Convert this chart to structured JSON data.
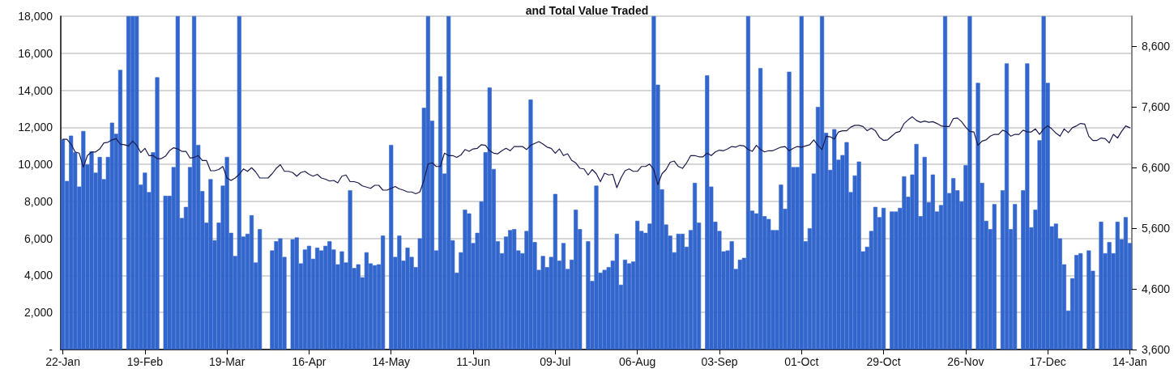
{
  "chart_data": {
    "type": "bar",
    "title": "and Total Value Traded",
    "categories": [
      "22-Jan",
      null,
      null,
      null,
      null,
      null,
      null,
      null,
      null,
      null,
      null,
      null,
      null,
      null,
      null,
      null,
      null,
      null,
      null,
      null,
      "19-Feb",
      null,
      null,
      null,
      null,
      null,
      null,
      null,
      null,
      null,
      null,
      null,
      null,
      null,
      null,
      null,
      null,
      null,
      null,
      null,
      "19-Mar",
      null,
      null,
      null,
      null,
      null,
      null,
      null,
      null,
      null,
      null,
      null,
      null,
      null,
      null,
      null,
      null,
      null,
      null,
      null,
      "16-Apr",
      null,
      null,
      null,
      null,
      null,
      null,
      null,
      null,
      null,
      null,
      null,
      null,
      null,
      null,
      null,
      null,
      null,
      null,
      null,
      "14-May",
      null,
      null,
      null,
      null,
      null,
      null,
      null,
      null,
      null,
      null,
      null,
      null,
      null,
      null,
      null,
      null,
      null,
      null,
      null,
      "11-Jun",
      null,
      null,
      null,
      null,
      null,
      null,
      null,
      null,
      null,
      null,
      null,
      null,
      null,
      null,
      null,
      null,
      null,
      null,
      null,
      "09-Jul",
      null,
      null,
      null,
      null,
      null,
      null,
      null,
      null,
      null,
      null,
      null,
      null,
      null,
      null,
      null,
      null,
      null,
      null,
      null,
      "06-Aug",
      null,
      null,
      null,
      null,
      null,
      null,
      null,
      null,
      null,
      null,
      null,
      null,
      null,
      null,
      null,
      null,
      null,
      null,
      null,
      "03-Sep",
      null,
      null,
      null,
      null,
      null,
      null,
      null,
      null,
      null,
      null,
      null,
      null,
      null,
      null,
      null,
      null,
      null,
      null,
      null,
      "01-Oct",
      null,
      null,
      null,
      null,
      null,
      null,
      null,
      null,
      null,
      null,
      null,
      null,
      null,
      null,
      null,
      null,
      null,
      null,
      null,
      "29-Oct",
      null,
      null,
      null,
      null,
      null,
      null,
      null,
      null,
      null,
      null,
      null,
      null,
      null,
      null,
      null,
      null,
      null,
      null,
      null,
      "26-Nov",
      null,
      null,
      null,
      null,
      null,
      null,
      null,
      null,
      null,
      null,
      null,
      null,
      null,
      null,
      null,
      null,
      null,
      null,
      null,
      "17-Dec",
      null,
      null,
      null,
      null,
      null,
      null,
      null,
      null,
      null,
      null,
      null,
      null,
      null,
      null,
      null,
      null,
      null,
      null,
      null,
      "14-Jan"
    ],
    "series": [
      {
        "color": "#3366cc",
        "values": [
          11350,
          9100,
          11550,
          10650,
          8800,
          11800,
          10000,
          10700,
          9550,
          10400,
          9200,
          10400,
          12250,
          11650,
          15100,
          null,
          18000,
          18000,
          18000,
          8900,
          9550,
          8500,
          10650,
          14700,
          null,
          8300,
          8300,
          9850,
          18000,
          7100,
          7700,
          9850,
          18000,
          11050,
          8550,
          6850,
          9200,
          5900,
          6850,
          8850,
          10400,
          6300,
          5050,
          18000,
          6100,
          6250,
          7250,
          4700,
          6500,
          null,
          null,
          5350,
          5850,
          6000,
          5000,
          null,
          5950,
          6050,
          4650,
          5400,
          5600,
          4900,
          5500,
          5350,
          5600,
          5850,
          5400,
          4600,
          5300,
          4700,
          8600,
          4400,
          4600,
          3900,
          5250,
          4650,
          4550,
          4600,
          6150,
          null,
          11050,
          5000,
          6150,
          4800,
          5500,
          5000,
          4450,
          6000,
          13050,
          18000,
          12350,
          5350,
          14750,
          9500,
          18000,
          5900,
          4150,
          5250,
          7550,
          7350,
          5750,
          6300,
          8000,
          10650,
          14150,
          9750,
          5850,
          5200,
          6100,
          6450,
          6500,
          5350,
          5200,
          6400,
          13500,
          5800,
          4300,
          5050,
          4450,
          5000,
          8400,
          4800,
          5750,
          4350,
          4850,
          7550,
          6500,
          null,
          5850,
          3700,
          8850,
          4150,
          4300,
          4450,
          4800,
          6250,
          3500,
          4850,
          4650,
          4750,
          6950,
          6400,
          6300,
          6800,
          18000,
          14300,
          8650,
          6750,
          6150,
          5250,
          6250,
          6250,
          5550,
          6450,
          9000,
          6850,
          null,
          14800,
          8800,
          6900,
          6400,
          5300,
          5350,
          5850,
          4350,
          4850,
          4950,
          18000,
          7500,
          7350,
          15200,
          7200,
          7050,
          6450,
          6450,
          8900,
          7600,
          15000,
          9850,
          9850,
          18000,
          5850,
          6550,
          9500,
          13100,
          18000,
          11700,
          9700,
          11900,
          10250,
          10500,
          11200,
          8500,
          9400,
          10150,
          5300,
          5550,
          6400,
          7700,
          7150,
          7650,
          null,
          7450,
          7450,
          7650,
          9350,
          8250,
          9450,
          11100,
          7200,
          10400,
          7950,
          9450,
          7450,
          7800,
          18000,
          8450,
          9250,
          8600,
          8000,
          9950,
          18000,
          null,
          14400,
          9000,
          6950,
          6500,
          7850,
          null,
          8600,
          15450,
          6500,
          7850,
          null,
          8600,
          15450,
          6600,
          7550,
          11300,
          18000,
          14400,
          6650,
          6800,
          6000,
          4600,
          2100,
          3850,
          5100,
          5200,
          null,
          5350,
          4250,
          null,
          6900,
          5200,
          5800,
          5200,
          6900,
          5950,
          7150,
          5750
        ]
      },
      {
        "type": "line",
        "axis": "y2",
        "color": "#1a1a4e",
        "values": [
          7070,
          7070,
          6990,
          6860,
          6840,
          6610,
          6800,
          6860,
          6860,
          6910,
          7010,
          7020,
          7060,
          7080,
          6990,
          6980,
          6960,
          7040,
          6970,
          6850,
          6920,
          6800,
          6800,
          6750,
          6750,
          6790,
          6880,
          6930,
          6910,
          6870,
          6870,
          6760,
          6770,
          6800,
          6720,
          6720,
          6550,
          6550,
          6570,
          6620,
          6430,
          6390,
          6430,
          6490,
          6580,
          6540,
          6600,
          6530,
          6430,
          6430,
          6430,
          6500,
          6590,
          6650,
          6540,
          6540,
          6520,
          6460,
          6520,
          6540,
          6490,
          6460,
          6490,
          6430,
          6410,
          6380,
          6390,
          6350,
          6460,
          6480,
          6370,
          6370,
          6350,
          6300,
          6280,
          6260,
          6310,
          6310,
          6230,
          6230,
          6260,
          6290,
          6250,
          6230,
          6200,
          6200,
          6170,
          6200,
          6390,
          6660,
          6680,
          6620,
          6620,
          6840,
          6800,
          6800,
          6770,
          6810,
          6900,
          6870,
          6910,
          6920,
          6980,
          6970,
          6880,
          6840,
          6830,
          6880,
          6920,
          6880,
          6950,
          6950,
          6950,
          6900,
          6970,
          7000,
          7030,
          6990,
          6940,
          6920,
          6840,
          6910,
          6800,
          6830,
          6720,
          6680,
          6590,
          6580,
          6480,
          6570,
          6500,
          6370,
          6510,
          6480,
          6490,
          6270,
          6430,
          6550,
          6580,
          6540,
          6540,
          6620,
          6620,
          6660,
          6570,
          6320,
          6500,
          6570,
          6690,
          6710,
          6620,
          6590,
          6680,
          6800,
          6800,
          6780,
          6780,
          6840,
          6800,
          6860,
          6890,
          6880,
          6910,
          6950,
          6940,
          6970,
          6960,
          6900,
          6870,
          6970,
          6900,
          6860,
          6880,
          6880,
          6910,
          6940,
          6950,
          6880,
          6920,
          6950,
          6940,
          6960,
          6980,
          7060,
          6970,
          6900,
          7120,
          7110,
          7070,
          7190,
          7210,
          7210,
          7270,
          7300,
          7300,
          7280,
          7210,
          7250,
          7210,
          7100,
          7050,
          7060,
          7120,
          7180,
          7200,
          7330,
          7390,
          7440,
          7380,
          7350,
          7370,
          7350,
          7360,
          7330,
          7290,
          7280,
          7280,
          7410,
          7420,
          7360,
          7270,
          7200,
          7190,
          6970,
          7040,
          7060,
          7120,
          7150,
          7150,
          7220,
          7190,
          7120,
          7150,
          7150,
          7220,
          7190,
          7190,
          7240,
          7150,
          7240,
          7290,
          7240,
          7170,
          7120,
          7240,
          7180,
          7260,
          7290,
          7330,
          7320,
          7120,
          7050,
          7050,
          7090,
          7080,
          7010,
          7150,
          7090,
          7200,
          7290,
          7260
        ]
      }
    ],
    "ylim": [
      0,
      18000
    ],
    "yticks": [
      {
        "value": 0,
        "label": "-"
      },
      {
        "value": 2000,
        "label": "2,000"
      },
      {
        "value": 4000,
        "label": "4,000"
      },
      {
        "value": 6000,
        "label": "6,000"
      },
      {
        "value": 8000,
        "label": "8,000"
      },
      {
        "value": 10000,
        "label": "10,000"
      },
      {
        "value": 12000,
        "label": "12,000"
      },
      {
        "value": 14000,
        "label": "14,000"
      },
      {
        "value": 16000,
        "label": "16,000"
      },
      {
        "value": 18000,
        "label": "18,000"
      }
    ],
    "y2lim": [
      3600,
      9100
    ],
    "y2ticks": [
      {
        "value": 3600,
        "label": "3,600"
      },
      {
        "value": 4600,
        "label": "4,600"
      },
      {
        "value": 5600,
        "label": "5,600"
      },
      {
        "value": 6600,
        "label": "6,600"
      },
      {
        "value": 7600,
        "label": "7,600"
      },
      {
        "value": 8600,
        "label": "8,600"
      }
    ],
    "grid": "y",
    "marker": "none",
    "line_style": "solid"
  }
}
